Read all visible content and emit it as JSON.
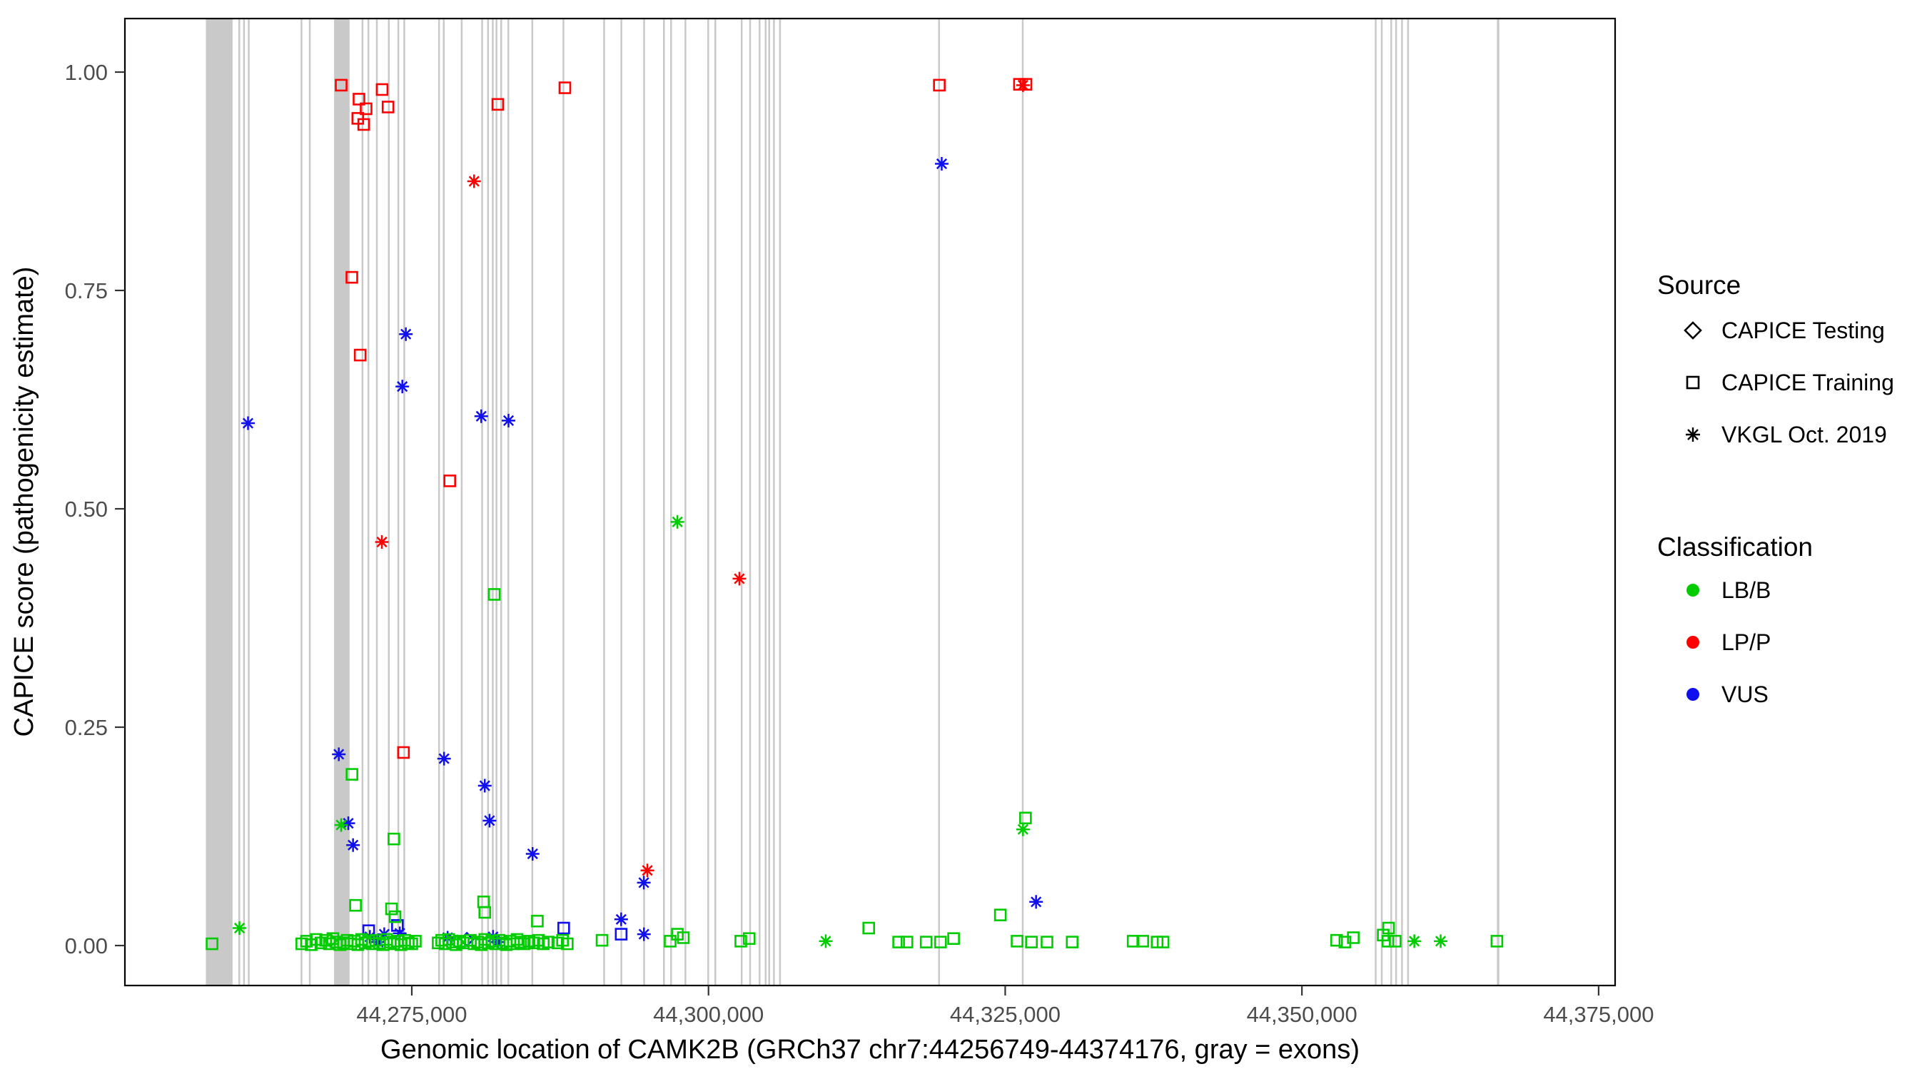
{
  "axes": {
    "x": {
      "label": "Genomic location of CAMK2B (GRCh37 chr7:44256749-44374176, gray = exons)",
      "tick_labels": [
        "44,275,000",
        "44,300,000",
        "44,325,000",
        "44,350,000",
        "44,375,000"
      ]
    },
    "y": {
      "label": "CAPICE score (pathogenicity estimate)",
      "tick_labels": [
        "0.00",
        "0.25",
        "0.50",
        "0.75",
        "1.00"
      ]
    }
  },
  "legend": {
    "source_title": "Source",
    "source_items": [
      {
        "label": "CAPICE Testing",
        "shape": "diamond",
        "key": "testing"
      },
      {
        "label": "CAPICE Training",
        "shape": "square",
        "key": "training"
      },
      {
        "label": "VKGL Oct. 2019",
        "shape": "asterisk",
        "key": "vkgl"
      }
    ],
    "classification_title": "Classification",
    "class_items": [
      {
        "label": "LB/B",
        "color": "#00CC00"
      },
      {
        "label": "LP/P",
        "color": "#FF0000"
      },
      {
        "label": "VUS",
        "color": "#0F0FF0"
      }
    ]
  },
  "colors": {
    "exon": "#C9C9C9",
    "panel_border": "#000000",
    "tick": "#333333",
    "tick_label": "#4d4d4d"
  },
  "chart_data": {
    "type": "scatter",
    "title": "",
    "xlabel": "Genomic location of CAMK2B (GRCh37 chr7:44256749-44374176, gray = exons)",
    "ylabel": "CAPICE score (pathogenicity estimate)",
    "gene_region": {
      "gene": "CAMK2B",
      "assembly": "GRCh37",
      "chromosome": "chr7",
      "start": 44256749,
      "end": 44374176
    },
    "x_ticks": [
      44275000,
      44300000,
      44325000,
      44350000,
      44375000
    ],
    "y_ticks": [
      0.0,
      0.25,
      0.5,
      0.75,
      1.0
    ],
    "ylim": [
      0,
      1
    ],
    "grid": false,
    "legend_position": "right",
    "exons": [
      [
        44257650,
        44259900
      ],
      [
        44260380,
        44260540
      ],
      [
        44260790,
        44260940
      ],
      [
        44261190,
        44261340
      ],
      [
        44265630,
        44265780
      ],
      [
        44266330,
        44266480
      ],
      [
        44268450,
        44269760
      ],
      [
        44270770,
        44270920
      ],
      [
        44271270,
        44271420
      ],
      [
        44271980,
        44272130
      ],
      [
        44272990,
        44273140
      ],
      [
        44273790,
        44273940
      ],
      [
        44274290,
        44274440
      ],
      [
        44277220,
        44277370
      ],
      [
        44277620,
        44277770
      ],
      [
        44279130,
        44279280
      ],
      [
        44280850,
        44281000
      ],
      [
        44281350,
        44281500
      ],
      [
        44281750,
        44281900
      ],
      [
        44282060,
        44282210
      ],
      [
        44282460,
        44282610
      ],
      [
        44283060,
        44283210
      ],
      [
        44285080,
        44285230
      ],
      [
        44287700,
        44287850
      ],
      [
        44291130,
        44291280
      ],
      [
        44292580,
        44292730
      ],
      [
        44294500,
        44294650
      ],
      [
        44296170,
        44296320
      ],
      [
        44296770,
        44296920
      ],
      [
        44297980,
        44298130
      ],
      [
        44299900,
        44300050
      ],
      [
        44300500,
        44300650
      ],
      [
        44302720,
        44302870
      ],
      [
        44303430,
        44303580
      ],
      [
        44304230,
        44304380
      ],
      [
        44304740,
        44304890
      ],
      [
        44305040,
        44305190
      ],
      [
        44305440,
        44305590
      ],
      [
        44305950,
        44306100
      ],
      [
        44319350,
        44319500
      ],
      [
        44326400,
        44326550
      ],
      [
        44356140,
        44356290
      ],
      [
        44356650,
        44356800
      ],
      [
        44357450,
        44357600
      ],
      [
        44357860,
        44358010
      ],
      [
        44358360,
        44358510
      ],
      [
        44358870,
        44359020
      ],
      [
        44366430,
        44366630
      ]
    ],
    "points_format": [
      "genomic_position",
      "capice_score",
      "source(training|vkgl|testing)",
      "classification"
    ],
    "points": [
      [
        44269050,
        0.985,
        "training",
        "LP/P"
      ],
      [
        44270550,
        0.969,
        "training",
        "LP/P"
      ],
      [
        44271150,
        0.958,
        "training",
        "LP/P"
      ],
      [
        44270450,
        0.947,
        "training",
        "LP/P"
      ],
      [
        44270950,
        0.94,
        "training",
        "LP/P"
      ],
      [
        44272500,
        0.98,
        "training",
        "LP/P"
      ],
      [
        44273000,
        0.96,
        "training",
        "LP/P"
      ],
      [
        44282250,
        0.963,
        "training",
        "LP/P"
      ],
      [
        44287900,
        0.982,
        "training",
        "LP/P"
      ],
      [
        44319450,
        0.985,
        "training",
        "LP/P"
      ],
      [
        44326200,
        0.986,
        "training",
        "LP/P"
      ],
      [
        44326750,
        0.986,
        "training",
        "LP/P"
      ],
      [
        44326500,
        0.985,
        "vkgl",
        "LP/P"
      ],
      [
        44269950,
        0.765,
        "training",
        "LP/P"
      ],
      [
        44270650,
        0.676,
        "training",
        "LP/P"
      ],
      [
        44274300,
        0.221,
        "training",
        "LP/P"
      ],
      [
        44278200,
        0.532,
        "training",
        "LP/P"
      ],
      [
        44280250,
        0.875,
        "vkgl",
        "LP/P"
      ],
      [
        44272480,
        0.462,
        "vkgl",
        "LP/P"
      ],
      [
        44302600,
        0.42,
        "vkgl",
        "LP/P"
      ],
      [
        44294850,
        0.086,
        "vkgl",
        "LP/P"
      ],
      [
        44261200,
        0.598,
        "vkgl",
        "VUS"
      ],
      [
        44274500,
        0.7,
        "vkgl",
        "VUS"
      ],
      [
        44274200,
        0.64,
        "vkgl",
        "VUS"
      ],
      [
        44280850,
        0.606,
        "vkgl",
        "VUS"
      ],
      [
        44283150,
        0.601,
        "vkgl",
        "VUS"
      ],
      [
        44319650,
        0.895,
        "vkgl",
        "VUS"
      ],
      [
        44277720,
        0.214,
        "vkgl",
        "VUS"
      ],
      [
        44268850,
        0.219,
        "vkgl",
        "VUS"
      ],
      [
        44281150,
        0.183,
        "vkgl",
        "VUS"
      ],
      [
        44281550,
        0.143,
        "vkgl",
        "VUS"
      ],
      [
        44285180,
        0.105,
        "vkgl",
        "VUS"
      ],
      [
        44269650,
        0.14,
        "vkgl",
        "VUS"
      ],
      [
        44270050,
        0.115,
        "vkgl",
        "VUS"
      ],
      [
        44327600,
        0.05,
        "vkgl",
        "VUS"
      ],
      [
        44292640,
        0.03,
        "vkgl",
        "VUS"
      ],
      [
        44294550,
        0.072,
        "vkgl",
        "VUS"
      ],
      [
        44271470,
        0.01,
        "vkgl",
        "VUS"
      ],
      [
        44272180,
        0.004,
        "vkgl",
        "VUS"
      ],
      [
        44272680,
        0.013,
        "vkgl",
        "VUS"
      ],
      [
        44273990,
        0.014,
        "vkgl",
        "VUS"
      ],
      [
        44281850,
        0.01,
        "vkgl",
        "VUS"
      ],
      [
        44282260,
        0.004,
        "vkgl",
        "VUS"
      ],
      [
        44278020,
        0.009,
        "vkgl",
        "VUS"
      ],
      [
        44294560,
        0.013,
        "vkgl",
        "VUS"
      ],
      [
        44287800,
        0.02,
        "training",
        "VUS"
      ],
      [
        44273790,
        0.023,
        "training",
        "VUS"
      ],
      [
        44292640,
        0.013,
        "training",
        "VUS"
      ],
      [
        44271370,
        0.017,
        "training",
        "VUS"
      ],
      [
        44279640,
        0.007,
        "testing",
        "VUS"
      ],
      [
        44297380,
        0.485,
        "vkgl",
        "LB/B"
      ],
      [
        44281950,
        0.402,
        "training",
        "LB/B"
      ],
      [
        44273490,
        0.122,
        "training",
        "LB/B"
      ],
      [
        44269960,
        0.196,
        "training",
        "LB/B"
      ],
      [
        44269050,
        0.138,
        "vkgl",
        "LB/B"
      ],
      [
        44326710,
        0.146,
        "training",
        "LB/B"
      ],
      [
        44326500,
        0.133,
        "vkgl",
        "LB/B"
      ],
      [
        44324590,
        0.035,
        "training",
        "LB/B"
      ],
      [
        44270260,
        0.046,
        "training",
        "LB/B"
      ],
      [
        44273290,
        0.042,
        "training",
        "LB/B"
      ],
      [
        44273590,
        0.033,
        "training",
        "LB/B"
      ],
      [
        44281050,
        0.05,
        "training",
        "LB/B"
      ],
      [
        44281150,
        0.038,
        "training",
        "LB/B"
      ],
      [
        44285580,
        0.028,
        "training",
        "LB/B"
      ],
      [
        44260480,
        0.02,
        "vkgl",
        "LB/B"
      ],
      [
        44258170,
        0.002,
        "training",
        "LB/B"
      ],
      [
        44313500,
        0.02,
        "training",
        "LB/B"
      ],
      [
        44297380,
        0.013,
        "training",
        "LB/B"
      ],
      [
        44297880,
        0.009,
        "training",
        "LB/B"
      ],
      [
        44296770,
        0.005,
        "training",
        "LB/B"
      ],
      [
        44302720,
        0.005,
        "training",
        "LB/B"
      ],
      [
        44303430,
        0.008,
        "training",
        "LB/B"
      ],
      [
        44309880,
        0.005,
        "vkgl",
        "LB/B"
      ],
      [
        44316020,
        0.004,
        "training",
        "LB/B"
      ],
      [
        44316720,
        0.004,
        "training",
        "LB/B"
      ],
      [
        44318340,
        0.004,
        "training",
        "LB/B"
      ],
      [
        44319550,
        0.004,
        "training",
        "LB/B"
      ],
      [
        44320650,
        0.008,
        "training",
        "LB/B"
      ],
      [
        44326000,
        0.005,
        "training",
        "LB/B"
      ],
      [
        44327210,
        0.004,
        "training",
        "LB/B"
      ],
      [
        44328520,
        0.004,
        "training",
        "LB/B"
      ],
      [
        44330640,
        0.004,
        "training",
        "LB/B"
      ],
      [
        44335780,
        0.005,
        "training",
        "LB/B"
      ],
      [
        44336590,
        0.005,
        "training",
        "LB/B"
      ],
      [
        44337800,
        0.004,
        "training",
        "LB/B"
      ],
      [
        44338300,
        0.004,
        "training",
        "LB/B"
      ],
      [
        44352920,
        0.006,
        "training",
        "LB/B"
      ],
      [
        44353620,
        0.004,
        "training",
        "LB/B"
      ],
      [
        44354330,
        0.009,
        "training",
        "LB/B"
      ],
      [
        44356850,
        0.012,
        "training",
        "LB/B"
      ],
      [
        44357250,
        0.005,
        "training",
        "LB/B"
      ],
      [
        44357860,
        0.005,
        "training",
        "LB/B"
      ],
      [
        44357300,
        0.02,
        "training",
        "LB/B"
      ],
      [
        44359470,
        0.005,
        "vkgl",
        "LB/B"
      ],
      [
        44361690,
        0.005,
        "vkgl",
        "LB/B"
      ],
      [
        44366430,
        0.005,
        "training",
        "LB/B"
      ],
      [
        44291030,
        0.006,
        "training",
        "LB/B"
      ],
      [
        44278830,
        0.004,
        "testing",
        "LB/B"
      ],
      [
        44268150,
        0.006,
        "testing",
        "LB/B"
      ],
      [
        44265730,
        0.002,
        "training",
        "LB/B"
      ],
      [
        44266130,
        0.005,
        "training",
        "LB/B"
      ],
      [
        44266530,
        0.001,
        "training",
        "LB/B"
      ],
      [
        44266940,
        0.007,
        "training",
        "LB/B"
      ],
      [
        44267340,
        0.003,
        "training",
        "LB/B"
      ],
      [
        44267740,
        0.006,
        "training",
        "LB/B"
      ],
      [
        44268050,
        0.002,
        "training",
        "LB/B"
      ],
      [
        44268350,
        0.008,
        "training",
        "LB/B"
      ],
      [
        44268650,
        0.004,
        "training",
        "LB/B"
      ],
      [
        44268950,
        0.001,
        "training",
        "LB/B"
      ],
      [
        44269250,
        0.003,
        "training",
        "LB/B"
      ],
      [
        44269560,
        0.006,
        "training",
        "LB/B"
      ],
      [
        44269860,
        0.002,
        "training",
        "LB/B"
      ],
      [
        44270160,
        0.005,
        "training",
        "LB/B"
      ],
      [
        44270460,
        0.001,
        "training",
        "LB/B"
      ],
      [
        44270770,
        0.007,
        "training",
        "LB/B"
      ],
      [
        44271070,
        0.003,
        "training",
        "LB/B"
      ],
      [
        44271370,
        0.005,
        "training",
        "LB/B"
      ],
      [
        44271670,
        0.002,
        "training",
        "LB/B"
      ],
      [
        44271980,
        0.006,
        "training",
        "LB/B"
      ],
      [
        44272280,
        0.003,
        "training",
        "LB/B"
      ],
      [
        44272580,
        0.001,
        "training",
        "LB/B"
      ],
      [
        44272880,
        0.007,
        "training",
        "LB/B"
      ],
      [
        44273190,
        0.004,
        "training",
        "LB/B"
      ],
      [
        44273490,
        0.002,
        "training",
        "LB/B"
      ],
      [
        44273790,
        0.005,
        "training",
        "LB/B"
      ],
      [
        44274090,
        0.001,
        "training",
        "LB/B"
      ],
      [
        44274400,
        0.006,
        "training",
        "LB/B"
      ],
      [
        44274700,
        0.003,
        "training",
        "LB/B"
      ],
      [
        44275000,
        0.002,
        "training",
        "LB/B"
      ],
      [
        44275300,
        0.005,
        "training",
        "LB/B"
      ],
      [
        44277220,
        0.003,
        "training",
        "LB/B"
      ],
      [
        44277520,
        0.006,
        "training",
        "LB/B"
      ],
      [
        44277820,
        0.002,
        "training",
        "LB/B"
      ],
      [
        44278120,
        0.007,
        "training",
        "LB/B"
      ],
      [
        44278430,
        0.004,
        "training",
        "LB/B"
      ],
      [
        44278730,
        0.001,
        "training",
        "LB/B"
      ],
      [
        44279030,
        0.005,
        "training",
        "LB/B"
      ],
      [
        44279330,
        0.003,
        "training",
        "LB/B"
      ],
      [
        44279940,
        0.006,
        "training",
        "LB/B"
      ],
      [
        44280240,
        0.002,
        "training",
        "LB/B"
      ],
      [
        44280540,
        0.004,
        "training",
        "LB/B"
      ],
      [
        44280850,
        0.001,
        "training",
        "LB/B"
      ],
      [
        44281150,
        0.007,
        "training",
        "LB/B"
      ],
      [
        44281450,
        0.003,
        "training",
        "LB/B"
      ],
      [
        44281750,
        0.005,
        "training",
        "LB/B"
      ],
      [
        44282060,
        0.002,
        "training",
        "LB/B"
      ],
      [
        44282360,
        0.006,
        "training",
        "LB/B"
      ],
      [
        44282660,
        0.003,
        "training",
        "LB/B"
      ],
      [
        44282960,
        0.001,
        "training",
        "LB/B"
      ],
      [
        44283270,
        0.005,
        "training",
        "LB/B"
      ],
      [
        44283570,
        0.002,
        "training",
        "LB/B"
      ],
      [
        44283870,
        0.007,
        "training",
        "LB/B"
      ],
      [
        44284170,
        0.004,
        "training",
        "LB/B"
      ],
      [
        44284470,
        0.002,
        "training",
        "LB/B"
      ],
      [
        44284880,
        0.005,
        "training",
        "LB/B"
      ],
      [
        44285280,
        0.003,
        "training",
        "LB/B"
      ],
      [
        44285680,
        0.006,
        "training",
        "LB/B"
      ],
      [
        44286080,
        0.002,
        "training",
        "LB/B"
      ],
      [
        44286490,
        0.004,
        "training",
        "LB/B"
      ],
      [
        44287300,
        0.003,
        "training",
        "LB/B"
      ],
      [
        44287700,
        0.006,
        "training",
        "LB/B"
      ],
      [
        44288100,
        0.002,
        "training",
        "LB/B"
      ]
    ]
  }
}
